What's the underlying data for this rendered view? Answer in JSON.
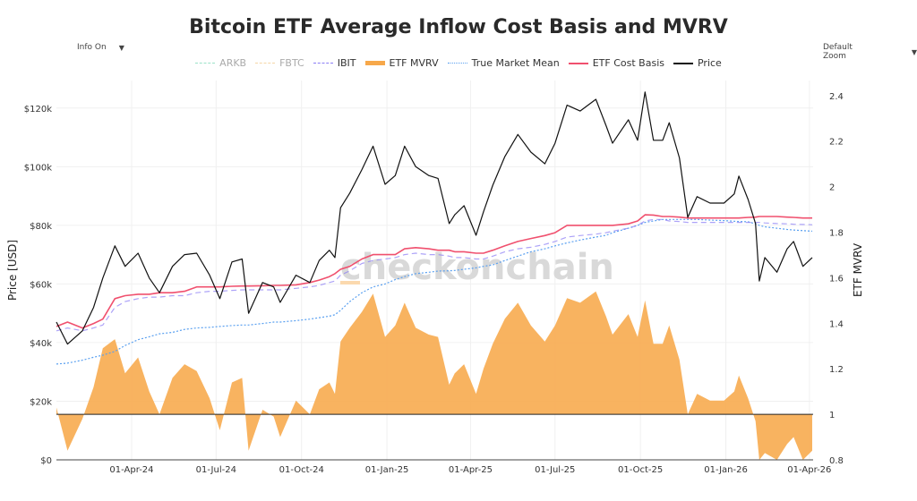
{
  "title": "Bitcoin ETF Average Inflow Cost Basis and MVRV",
  "controls": {
    "info_label": "Info On",
    "zoom_label": "Default Zoom",
    "dropdown_icon": "triangle-down-icon"
  },
  "watermark": "checkonchain",
  "legend": [
    {
      "name": "ARKB",
      "color": "#9be3c8",
      "style": "dashed",
      "visible": false
    },
    {
      "name": "FBTC",
      "color": "#f5d7a6",
      "style": "dashed",
      "visible": false
    },
    {
      "name": "IBIT",
      "color": "#8a7cf5",
      "style": "dashed",
      "visible": true
    },
    {
      "name": "ETF MVRV",
      "color": "#f7a84a",
      "style": "area",
      "visible": true
    },
    {
      "name": "True Market Mean",
      "color": "#5aa0f0",
      "style": "dotted",
      "visible": true
    },
    {
      "name": "ETF Cost Basis",
      "color": "#f0506e",
      "style": "solid",
      "visible": true
    },
    {
      "name": "Price",
      "color": "#111111",
      "style": "solid",
      "visible": true
    }
  ],
  "chart_data": {
    "type": "line",
    "title": "Bitcoin ETF Average Inflow Cost Basis and MVRV",
    "ylabel": "Price [USD]",
    "y2label": "ETF MVRV",
    "xlim": [
      "2024-01-11",
      "2026-04-05"
    ],
    "ylim": [
      0,
      129400
    ],
    "y2lim": [
      0.8,
      2.466
    ],
    "mvrv_reference": 1,
    "grid": true,
    "legend_position": "top",
    "x_ticks": [
      "01-Apr-24",
      "01-Jul-24",
      "01-Oct-24",
      "01-Jan-25",
      "01-Apr-25",
      "01-Jul-25",
      "01-Oct-25",
      "01-Jan-26",
      "01-Apr-26"
    ],
    "x_tick_dates": [
      "2024-04-01",
      "2024-07-01",
      "2024-10-01",
      "2025-01-01",
      "2025-04-01",
      "2025-07-01",
      "2025-10-01",
      "2026-01-01",
      "2026-04-01"
    ],
    "y_ticks": [
      {
        "v": 0,
        "label": "$0"
      },
      {
        "v": 20000,
        "label": "$20k"
      },
      {
        "v": 40000,
        "label": "$40k"
      },
      {
        "v": 60000,
        "label": "$60k"
      },
      {
        "v": 80000,
        "label": "$80k"
      },
      {
        "v": 100000,
        "label": "$100k"
      },
      {
        "v": 120000,
        "label": "$120k"
      }
    ],
    "y2_ticks": [
      {
        "v": 0.8,
        "label": "0.8"
      },
      {
        "v": 1.0,
        "label": "1"
      },
      {
        "v": 1.2,
        "label": "1.2"
      },
      {
        "v": 1.4,
        "label": "1.4"
      },
      {
        "v": 1.6,
        "label": "1.6"
      },
      {
        "v": 1.8,
        "label": "1.8"
      },
      {
        "v": 2.0,
        "label": "2"
      },
      {
        "v": 2.2,
        "label": "2.2"
      },
      {
        "v": 2.4,
        "label": "2.4"
      }
    ],
    "dates": [
      "2024-01-11",
      "2024-01-23",
      "2024-02-08",
      "2024-02-20",
      "2024-03-01",
      "2024-03-14",
      "2024-03-25",
      "2024-04-08",
      "2024-04-20",
      "2024-05-01",
      "2024-05-15",
      "2024-05-28",
      "2024-06-10",
      "2024-06-24",
      "2024-07-05",
      "2024-07-18",
      "2024-07-29",
      "2024-08-05",
      "2024-08-20",
      "2024-09-01",
      "2024-09-08",
      "2024-09-25",
      "2024-10-10",
      "2024-10-20",
      "2024-10-31",
      "2024-11-06",
      "2024-11-12",
      "2024-11-22",
      "2024-12-05",
      "2024-12-17",
      "2024-12-30",
      "2025-01-10",
      "2025-01-20",
      "2025-02-01",
      "2025-02-15",
      "2025-02-25",
      "2025-03-09",
      "2025-03-15",
      "2025-03-25",
      "2025-04-07",
      "2025-04-15",
      "2025-04-25",
      "2025-05-08",
      "2025-05-22",
      "2025-06-05",
      "2025-06-20",
      "2025-07-01",
      "2025-07-14",
      "2025-07-28",
      "2025-08-14",
      "2025-08-25",
      "2025-09-01",
      "2025-09-18",
      "2025-09-28",
      "2025-10-06",
      "2025-10-15",
      "2025-10-25",
      "2025-11-01",
      "2025-11-12",
      "2025-11-21",
      "2025-12-01",
      "2025-12-15",
      "2025-12-30",
      "2026-01-10",
      "2026-01-15",
      "2026-01-25",
      "2026-02-02",
      "2026-02-06",
      "2026-02-12",
      "2026-02-25",
      "2026-03-08",
      "2026-03-15",
      "2026-03-25",
      "2026-04-04"
    ],
    "series": [
      {
        "name": "Price",
        "axis": "left",
        "values": [
          47000,
          39500,
          44000,
          52000,
          62000,
          73000,
          66000,
          70500,
          62000,
          57000,
          66000,
          70000,
          70500,
          63000,
          55000,
          67500,
          68500,
          50000,
          60500,
          59000,
          53700,
          63000,
          60500,
          68000,
          71500,
          69000,
          86000,
          91000,
          99000,
          107000,
          94000,
          97000,
          107000,
          100000,
          97000,
          96000,
          80600,
          83600,
          86700,
          76600,
          84600,
          93700,
          103500,
          111000,
          105000,
          101000,
          108000,
          121000,
          119000,
          123000,
          114000,
          108000,
          116000,
          109000,
          125500,
          109000,
          109000,
          115000,
          103000,
          82700,
          89800,
          87600,
          87600,
          90700,
          96800,
          88800,
          80600,
          61000,
          69000,
          64000,
          72000,
          74500,
          66000,
          69000
        ]
      },
      {
        "name": "ETF Cost Basis",
        "axis": "left",
        "values": [
          45500,
          47000,
          45000,
          46500,
          48000,
          55000,
          56000,
          56500,
          56500,
          57000,
          57000,
          57500,
          59000,
          59000,
          59000,
          59200,
          59300,
          59300,
          59400,
          59500,
          59500,
          59700,
          60500,
          61300,
          62500,
          63500,
          65000,
          66000,
          68500,
          70000,
          70000,
          70000,
          72000,
          72400,
          72000,
          71500,
          71500,
          71000,
          71000,
          70500,
          70500,
          71500,
          73000,
          74500,
          75500,
          76500,
          77500,
          80000,
          80000,
          80000,
          80000,
          80000,
          80500,
          81500,
          83600,
          83500,
          83000,
          83000,
          82800,
          82500,
          82500,
          82500,
          82500,
          82500,
          82500,
          82700,
          82800,
          83000,
          83000,
          83000,
          82800,
          82700,
          82500,
          82500
        ]
      },
      {
        "name": "True Market Mean",
        "axis": "left",
        "values": [
          32700,
          33000,
          34000,
          35000,
          35700,
          37000,
          39000,
          41000,
          42000,
          43000,
          43500,
          44500,
          45000,
          45200,
          45500,
          45800,
          46000,
          46000,
          46500,
          47000,
          47000,
          47500,
          48000,
          48500,
          49000,
          49500,
          51000,
          54000,
          57000,
          59000,
          60000,
          61500,
          62500,
          63500,
          64000,
          64400,
          64500,
          64600,
          65000,
          65500,
          66000,
          66500,
          68000,
          69500,
          71000,
          72000,
          73000,
          74000,
          75000,
          76000,
          76600,
          77500,
          79000,
          80000,
          81000,
          81500,
          82000,
          82000,
          82000,
          82000,
          82000,
          81800,
          81600,
          81400,
          81300,
          81200,
          80500,
          80000,
          79500,
          79000,
          78600,
          78400,
          78200,
          78000
        ]
      },
      {
        "name": "IBIT",
        "axis": "left",
        "values": [
          44000,
          45000,
          44000,
          45000,
          46000,
          52000,
          54000,
          55000,
          55500,
          55500,
          56000,
          56000,
          57000,
          57500,
          57500,
          57800,
          58000,
          58000,
          58000,
          58000,
          58000,
          58500,
          59000,
          59500,
          60500,
          61000,
          63000,
          64500,
          67000,
          68000,
          68500,
          69000,
          70000,
          70500,
          70000,
          70000,
          69500,
          69000,
          69000,
          68500,
          68500,
          69500,
          71000,
          72000,
          72500,
          73500,
          74500,
          76000,
          76500,
          77000,
          77500,
          78000,
          79000,
          80000,
          81500,
          82000,
          82000,
          81500,
          81300,
          81000,
          81000,
          81000,
          81000,
          81000,
          81000,
          81000,
          81000,
          81000,
          80800,
          80600,
          80500,
          80400,
          80300,
          80200
        ]
      },
      {
        "name": "ETF MVRV",
        "axis": "right",
        "values": [
          1.03,
          0.84,
          0.98,
          1.12,
          1.29,
          1.33,
          1.18,
          1.25,
          1.1,
          1.0,
          1.16,
          1.22,
          1.19,
          1.07,
          0.93,
          1.14,
          1.16,
          0.84,
          1.02,
          0.99,
          0.9,
          1.06,
          1.0,
          1.11,
          1.14,
          1.09,
          1.32,
          1.38,
          1.45,
          1.53,
          1.34,
          1.39,
          1.49,
          1.38,
          1.35,
          1.34,
          1.13,
          1.18,
          1.22,
          1.09,
          1.2,
          1.31,
          1.42,
          1.49,
          1.39,
          1.32,
          1.39,
          1.51,
          1.49,
          1.54,
          1.43,
          1.35,
          1.44,
          1.34,
          1.5,
          1.31,
          1.31,
          1.39,
          1.24,
          1.0,
          1.09,
          1.06,
          1.06,
          1.1,
          1.17,
          1.07,
          0.97,
          0.74,
          0.83,
          0.77,
          0.87,
          0.9,
          0.8,
          0.84
        ]
      }
    ]
  }
}
